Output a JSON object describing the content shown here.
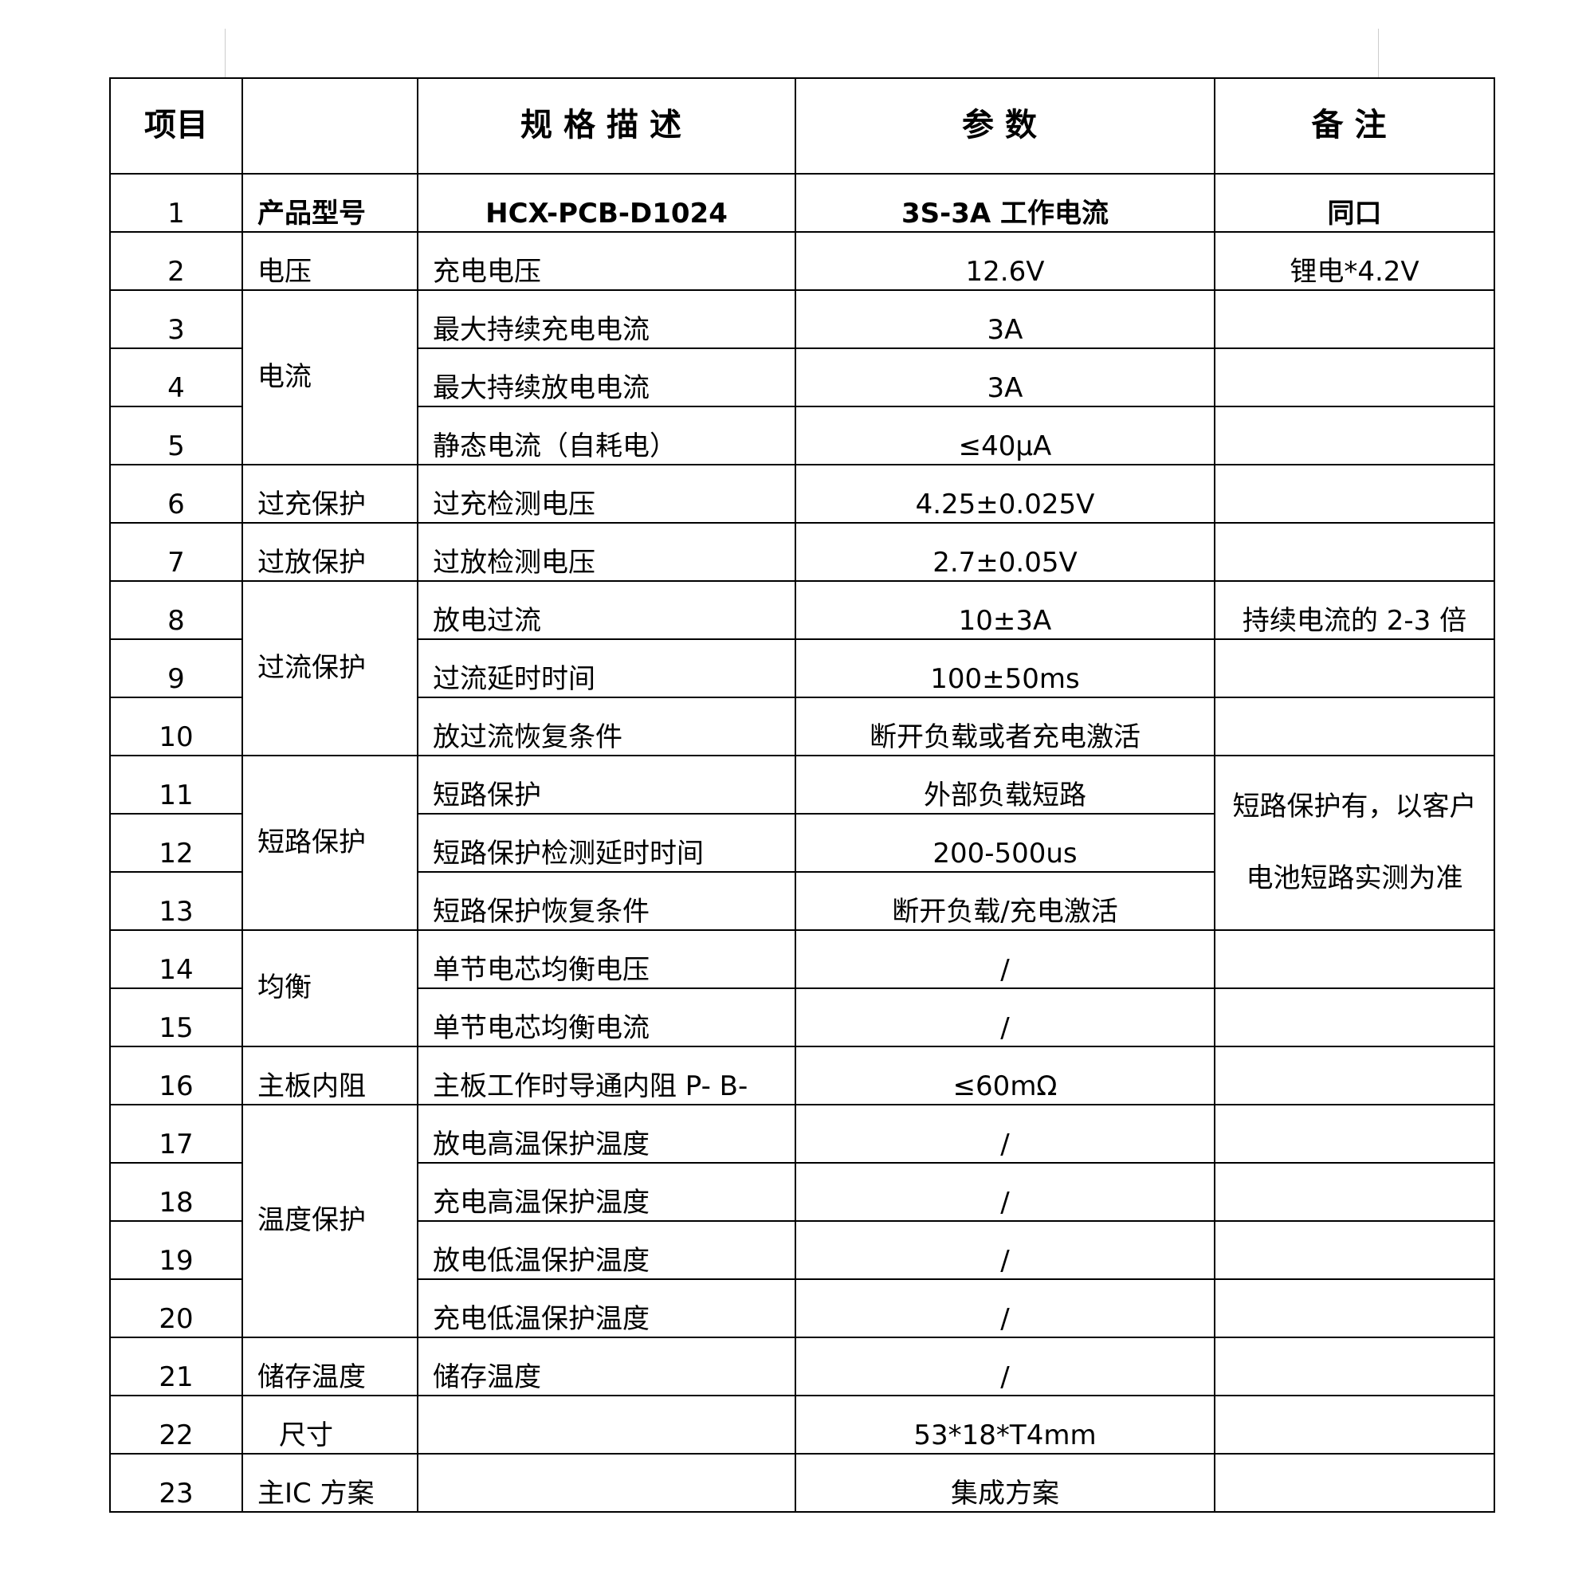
{
  "header": {
    "item": "项目",
    "category": "",
    "spec": "规格描述",
    "param": "参数",
    "remark": "备注"
  },
  "rows": [
    {
      "no": "1",
      "category": "产品型号",
      "spec": "HCX-PCB-D1024",
      "param": "3S-3A 工作电流",
      "remark": "同口"
    },
    {
      "no": "2",
      "category": "电压",
      "spec": "充电电压",
      "param": "12.6V",
      "remark": "锂电*4.2V"
    },
    {
      "no": "3",
      "category": "电流",
      "spec": "最大持续充电电流",
      "param": "3A",
      "remark": ""
    },
    {
      "no": "4",
      "spec": "最大持续放电电流",
      "param": "3A",
      "remark": ""
    },
    {
      "no": "5",
      "spec": "静态电流（自耗电）",
      "param": "≤40μA",
      "remark": ""
    },
    {
      "no": "6",
      "category": "过充保护",
      "spec": "过充检测电压",
      "param": "4.25±0.025V",
      "remark": ""
    },
    {
      "no": "7",
      "category": "过放保护",
      "spec": "过放检测电压",
      "param": "2.7±0.05V",
      "remark": ""
    },
    {
      "no": "8",
      "category": "过流保护",
      "spec": "放电过流",
      "param": "10±3A",
      "remark": "持续电流的 2-3 倍"
    },
    {
      "no": "9",
      "spec": "过流延时时间",
      "param": "100±50ms",
      "remark": ""
    },
    {
      "no": "10",
      "spec": "放过流恢复条件",
      "param": "断开负载或者充电激活",
      "remark": ""
    },
    {
      "no": "11",
      "category": "短路保护",
      "spec": "短路保护",
      "param": "外部负载短路",
      "remark_lines": [
        "短路保护有，以客户",
        "电池短路实测为准"
      ]
    },
    {
      "no": "12",
      "spec": "短路保护检测延时时间",
      "param": "200-500us"
    },
    {
      "no": "13",
      "spec": "短路保护恢复条件",
      "param": "断开负载/充电激活"
    },
    {
      "no": "14",
      "category": "均衡",
      "spec": "单节电芯均衡电压",
      "param": "/",
      "remark": ""
    },
    {
      "no": "15",
      "spec": "单节电芯均衡电流",
      "param": "/",
      "remark": ""
    },
    {
      "no": "16",
      "category": "主板内阻",
      "spec": "主板工作时导通内阻 P- B-",
      "param": "≤60mΩ",
      "remark": ""
    },
    {
      "no": "17",
      "category": "温度保护",
      "spec": "放电高温保护温度",
      "param": "/",
      "remark": ""
    },
    {
      "no": "18",
      "spec": "充电高温保护温度",
      "param": "/",
      "remark": ""
    },
    {
      "no": "19",
      "spec": "放电低温保护温度",
      "param": "/",
      "remark": ""
    },
    {
      "no": "20",
      "spec": "充电低温保护温度",
      "param": "/",
      "remark": ""
    },
    {
      "no": "21",
      "category": "储存温度",
      "spec": "储存温度",
      "param": "/",
      "remark": ""
    },
    {
      "no": "22",
      "category": "尺寸",
      "spec": "",
      "param": "53*18*T4mm",
      "remark": ""
    },
    {
      "no": "23",
      "category": "主IC 方案",
      "spec": "",
      "param": "集成方案",
      "remark": ""
    }
  ]
}
